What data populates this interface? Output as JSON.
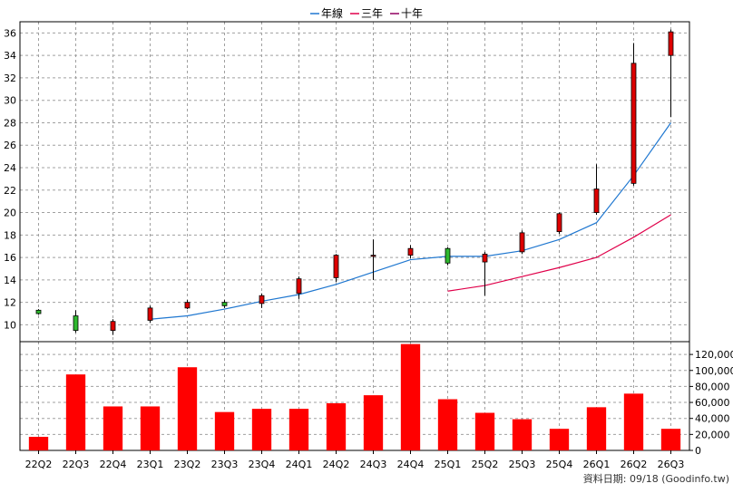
{
  "legend": [
    {
      "label": "年線",
      "color": "#1f77d0"
    },
    {
      "label": "三年",
      "color": "#e0004a"
    },
    {
      "label": "十年",
      "color": "#900060"
    }
  ],
  "source_note": "資料日期: 09/18  (Goodinfo.tw)",
  "chart_data": [
    {
      "type": "candlestick",
      "title": "",
      "categories": [
        "22Q2",
        "22Q3",
        "22Q4",
        "23Q1",
        "23Q2",
        "23Q3",
        "23Q4",
        "24Q1",
        "24Q2",
        "24Q3",
        "24Q4",
        "25Q1",
        "25Q2",
        "25Q3",
        "25Q4",
        "26Q1",
        "26Q2",
        "26Q3"
      ],
      "ylim": [
        8.5,
        37
      ],
      "yticks": [
        10,
        12,
        14,
        16,
        18,
        20,
        22,
        24,
        26,
        28,
        30,
        32,
        34,
        36
      ],
      "grid": true,
      "candles": [
        {
          "open": 11.0,
          "close": 11.3,
          "high": 11.4,
          "low": 10.9,
          "color": "green"
        },
        {
          "open": 9.5,
          "close": 10.8,
          "high": 11.3,
          "low": 9.3,
          "color": "green"
        },
        {
          "open": 10.3,
          "close": 9.5,
          "high": 10.5,
          "low": 9.1,
          "color": "red"
        },
        {
          "open": 11.5,
          "close": 10.4,
          "high": 11.7,
          "low": 10.2,
          "color": "red"
        },
        {
          "open": 12.0,
          "close": 11.5,
          "high": 12.2,
          "low": 11.4,
          "color": "red"
        },
        {
          "open": 11.7,
          "close": 12.0,
          "high": 12.2,
          "low": 11.5,
          "color": "green"
        },
        {
          "open": 12.6,
          "close": 11.9,
          "high": 12.8,
          "low": 11.5,
          "color": "red"
        },
        {
          "open": 14.1,
          "close": 12.8,
          "high": 14.3,
          "low": 12.3,
          "color": "red"
        },
        {
          "open": 16.2,
          "close": 14.2,
          "high": 16.3,
          "low": 13.8,
          "color": "red"
        },
        {
          "open": 16.2,
          "close": 16.1,
          "high": 17.6,
          "low": 14.0,
          "color": "red"
        },
        {
          "open": 16.8,
          "close": 16.2,
          "high": 17.1,
          "low": 15.9,
          "color": "red"
        },
        {
          "open": 15.5,
          "close": 16.8,
          "high": 16.9,
          "low": 15.3,
          "color": "green"
        },
        {
          "open": 16.3,
          "close": 15.6,
          "high": 16.5,
          "low": 12.6,
          "color": "red"
        },
        {
          "open": 18.2,
          "close": 16.5,
          "high": 18.4,
          "low": 16.3,
          "color": "red"
        },
        {
          "open": 19.9,
          "close": 18.3,
          "high": 20.0,
          "low": 18.1,
          "color": "red"
        },
        {
          "open": 22.1,
          "close": 20.0,
          "high": 24.3,
          "low": 19.8,
          "color": "red"
        },
        {
          "open": 33.3,
          "close": 22.6,
          "high": 35.1,
          "low": 22.4,
          "color": "red"
        },
        {
          "open": 36.1,
          "close": 34.0,
          "high": 36.3,
          "low": 28.5,
          "color": "red"
        }
      ],
      "lines": [
        {
          "name": "年線",
          "color": "#1f77d0",
          "values": [
            null,
            null,
            null,
            10.5,
            10.8,
            11.4,
            12.1,
            12.7,
            13.6,
            14.7,
            15.8,
            16.1,
            16.1,
            16.6,
            17.6,
            19.1,
            23.3,
            28.0
          ]
        },
        {
          "name": "三年",
          "color": "#e0004a",
          "values": [
            null,
            null,
            null,
            null,
            null,
            null,
            null,
            null,
            null,
            null,
            null,
            13.0,
            13.5,
            14.3,
            15.1,
            16.0,
            17.8,
            19.8
          ]
        },
        {
          "name": "十年",
          "color": "#900060",
          "values": []
        }
      ]
    },
    {
      "type": "bar",
      "categories": [
        "22Q2",
        "22Q3",
        "22Q4",
        "23Q1",
        "23Q2",
        "23Q3",
        "23Q4",
        "24Q1",
        "24Q2",
        "24Q3",
        "24Q4",
        "25Q1",
        "25Q2",
        "25Q3",
        "25Q4",
        "26Q1",
        "26Q2",
        "26Q3"
      ],
      "values": [
        17000,
        95000,
        55000,
        55000,
        104000,
        48000,
        52000,
        52000,
        59000,
        69000,
        133000,
        64000,
        47000,
        39000,
        27000,
        54000,
        71000,
        27000
      ],
      "ylim": [
        0,
        136000
      ],
      "ytick_labels": [
        "0",
        "20,000",
        "40,000",
        "60,000",
        "80,000",
        "100,000",
        "120,000"
      ],
      "yticks": [
        0,
        20000,
        40000,
        60000,
        80000,
        100000,
        120000
      ],
      "bar_color": "#ff0000"
    }
  ]
}
